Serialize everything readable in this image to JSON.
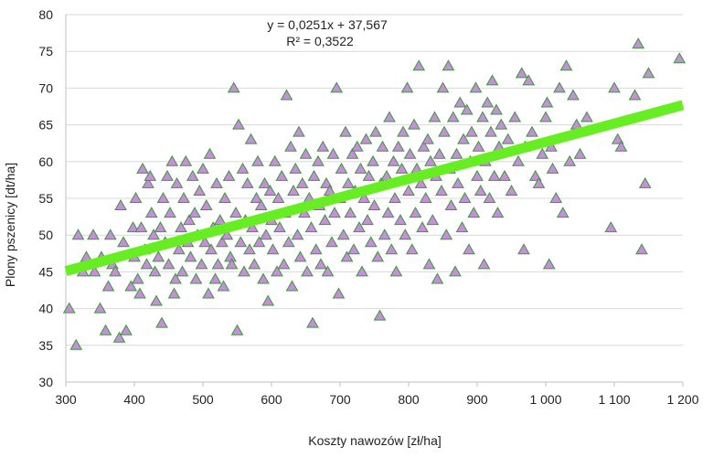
{
  "chart_data": {
    "type": "scatter",
    "xlabel": "Koszty nawozów  [zł/ha]",
    "ylabel": "Plony pszenicy [dt/ha]",
    "xlim": [
      300,
      1200
    ],
    "ylim": [
      30,
      80
    ],
    "x_ticks": [
      300,
      400,
      500,
      600,
      700,
      800,
      900,
      1000,
      1100,
      1200
    ],
    "x_tick_labels": [
      "300",
      "400",
      "500",
      "600",
      "700",
      "800",
      "900",
      "1 000",
      "1 100",
      "1 200"
    ],
    "y_ticks": [
      30,
      35,
      40,
      45,
      50,
      55,
      60,
      65,
      70,
      75,
      80
    ],
    "y_tick_labels": [
      "30",
      "35",
      "40",
      "45",
      "50",
      "55",
      "60",
      "65",
      "70",
      "75",
      "80"
    ],
    "grid": "horizontal",
    "marker": {
      "shape": "triangle",
      "fill": "#c88ddb",
      "stroke": "#3a9a3a"
    },
    "trendline": {
      "slope": 0.0251,
      "intercept": 37.567,
      "color": "#66ee22",
      "equation": "y = 0,0251x + 37,567",
      "r2": "R² = 0,3522"
    },
    "points": [
      [
        305,
        40
      ],
      [
        315,
        35
      ],
      [
        318,
        50
      ],
      [
        325,
        45
      ],
      [
        330,
        47
      ],
      [
        340,
        50
      ],
      [
        342,
        45
      ],
      [
        350,
        40
      ],
      [
        352,
        47
      ],
      [
        358,
        37
      ],
      [
        362,
        43
      ],
      [
        365,
        50
      ],
      [
        368,
        46
      ],
      [
        372,
        45
      ],
      [
        378,
        36
      ],
      [
        380,
        54
      ],
      [
        384,
        49
      ],
      [
        388,
        37
      ],
      [
        395,
        43
      ],
      [
        398,
        51
      ],
      [
        400,
        47
      ],
      [
        402,
        55
      ],
      [
        405,
        44
      ],
      [
        408,
        42
      ],
      [
        410,
        51
      ],
      [
        412,
        59
      ],
      [
        415,
        48
      ],
      [
        418,
        46
      ],
      [
        420,
        57
      ],
      [
        423,
        58
      ],
      [
        425,
        53
      ],
      [
        428,
        50
      ],
      [
        430,
        45
      ],
      [
        432,
        41
      ],
      [
        435,
        47
      ],
      [
        438,
        51
      ],
      [
        440,
        38
      ],
      [
        442,
        55
      ],
      [
        445,
        49
      ],
      [
        448,
        58
      ],
      [
        450,
        46
      ],
      [
        452,
        53
      ],
      [
        455,
        60
      ],
      [
        458,
        42
      ],
      [
        460,
        44
      ],
      [
        462,
        57
      ],
      [
        465,
        48
      ],
      [
        468,
        51
      ],
      [
        470,
        45
      ],
      [
        472,
        55
      ],
      [
        475,
        60
      ],
      [
        478,
        49
      ],
      [
        480,
        52
      ],
      [
        482,
        47
      ],
      [
        485,
        58
      ],
      [
        488,
        53
      ],
      [
        490,
        44
      ],
      [
        492,
        50
      ],
      [
        495,
        56
      ],
      [
        498,
        46
      ],
      [
        500,
        59
      ],
      [
        503,
        49
      ],
      [
        505,
        54
      ],
      [
        508,
        42
      ],
      [
        510,
        61
      ],
      [
        512,
        48
      ],
      [
        515,
        51
      ],
      [
        518,
        44
      ],
      [
        520,
        57
      ],
      [
        522,
        46
      ],
      [
        525,
        52
      ],
      [
        528,
        49
      ],
      [
        530,
        43
      ],
      [
        532,
        55
      ],
      [
        535,
        50
      ],
      [
        538,
        58
      ],
      [
        540,
        47
      ],
      [
        542,
        46
      ],
      [
        545,
        70
      ],
      [
        548,
        53
      ],
      [
        550,
        37
      ],
      [
        552,
        65
      ],
      [
        555,
        49
      ],
      [
        558,
        59
      ],
      [
        560,
        45
      ],
      [
        562,
        52
      ],
      [
        565,
        57
      ],
      [
        568,
        48
      ],
      [
        570,
        63
      ],
      [
        572,
        51
      ],
      [
        575,
        46
      ],
      [
        578,
        55
      ],
      [
        580,
        60
      ],
      [
        582,
        49
      ],
      [
        585,
        54
      ],
      [
        588,
        44
      ],
      [
        590,
        57
      ],
      [
        592,
        50
      ],
      [
        595,
        41
      ],
      [
        598,
        56
      ],
      [
        600,
        52
      ],
      [
        602,
        48
      ],
      [
        605,
        60
      ],
      [
        608,
        45
      ],
      [
        610,
        55
      ],
      [
        612,
        51
      ],
      [
        615,
        58
      ],
      [
        618,
        46
      ],
      [
        620,
        53
      ],
      [
        622,
        69
      ],
      [
        625,
        49
      ],
      [
        628,
        62
      ],
      [
        630,
        43
      ],
      [
        632,
        56
      ],
      [
        635,
        59
      ],
      [
        638,
        50
      ],
      [
        640,
        64
      ],
      [
        642,
        47
      ],
      [
        645,
        57
      ],
      [
        648,
        53
      ],
      [
        650,
        61
      ],
      [
        652,
        45
      ],
      [
        655,
        55
      ],
      [
        658,
        51
      ],
      [
        660,
        38
      ],
      [
        662,
        58
      ],
      [
        665,
        48
      ],
      [
        668,
        60
      ],
      [
        670,
        54
      ],
      [
        672,
        46
      ],
      [
        675,
        62
      ],
      [
        678,
        52
      ],
      [
        680,
        57
      ],
      [
        682,
        45
      ],
      [
        685,
        56
      ],
      [
        688,
        49
      ],
      [
        690,
        61
      ],
      [
        692,
        53
      ],
      [
        695,
        70
      ],
      [
        698,
        42
      ],
      [
        700,
        55
      ],
      [
        702,
        59
      ],
      [
        705,
        50
      ],
      [
        708,
        64
      ],
      [
        710,
        47
      ],
      [
        712,
        57
      ],
      [
        715,
        53
      ],
      [
        718,
        61
      ],
      [
        720,
        48
      ],
      [
        722,
        56
      ],
      [
        725,
        62
      ],
      [
        728,
        51
      ],
      [
        730,
        59
      ],
      [
        732,
        45
      ],
      [
        735,
        55
      ],
      [
        738,
        63
      ],
      [
        740,
        52
      ],
      [
        742,
        58
      ],
      [
        745,
        49
      ],
      [
        748,
        60
      ],
      [
        750,
        54
      ],
      [
        752,
        64
      ],
      [
        755,
        47
      ],
      [
        758,
        39
      ],
      [
        760,
        57
      ],
      [
        762,
        62
      ],
      [
        765,
        50
      ],
      [
        768,
        58
      ],
      [
        770,
        53
      ],
      [
        772,
        66
      ],
      [
        775,
        48
      ],
      [
        778,
        60
      ],
      [
        780,
        55
      ],
      [
        782,
        45
      ],
      [
        785,
        62
      ],
      [
        788,
        52
      ],
      [
        790,
        59
      ],
      [
        792,
        64
      ],
      [
        795,
        50
      ],
      [
        798,
        70
      ],
      [
        800,
        56
      ],
      [
        802,
        61
      ],
      [
        805,
        48
      ],
      [
        808,
        65
      ],
      [
        810,
        53
      ],
      [
        812,
        59
      ],
      [
        815,
        73
      ],
      [
        818,
        57
      ],
      [
        820,
        51
      ],
      [
        822,
        62
      ],
      [
        825,
        55
      ],
      [
        828,
        63
      ],
      [
        830,
        46
      ],
      [
        832,
        60
      ],
      [
        835,
        52
      ],
      [
        838,
        66
      ],
      [
        840,
        58
      ],
      [
        842,
        44
      ],
      [
        845,
        61
      ],
      [
        848,
        56
      ],
      [
        850,
        70
      ],
      [
        852,
        64
      ],
      [
        855,
        50
      ],
      [
        858,
        73
      ],
      [
        860,
        59
      ],
      [
        862,
        54
      ],
      [
        865,
        66
      ],
      [
        868,
        45
      ],
      [
        870,
        61
      ],
      [
        872,
        57
      ],
      [
        875,
        68
      ],
      [
        878,
        51
      ],
      [
        880,
        63
      ],
      [
        882,
        55
      ],
      [
        885,
        67
      ],
      [
        888,
        48
      ],
      [
        890,
        60
      ],
      [
        892,
        64
      ],
      [
        895,
        53
      ],
      [
        898,
        70
      ],
      [
        900,
        58
      ],
      [
        902,
        62
      ],
      [
        905,
        56
      ],
      [
        908,
        66
      ],
      [
        910,
        46
      ],
      [
        912,
        60
      ],
      [
        915,
        68
      ],
      [
        918,
        55
      ],
      [
        920,
        64
      ],
      [
        922,
        71
      ],
      [
        925,
        58
      ],
      [
        928,
        67
      ],
      [
        930,
        53
      ],
      [
        932,
        62
      ],
      [
        935,
        65
      ],
      [
        940,
        58
      ],
      [
        945,
        63
      ],
      [
        950,
        56
      ],
      [
        955,
        66
      ],
      [
        960,
        60
      ],
      [
        965,
        72
      ],
      [
        968,
        48
      ],
      [
        970,
        62
      ],
      [
        975,
        71
      ],
      [
        980,
        64
      ],
      [
        985,
        58
      ],
      [
        990,
        57
      ],
      [
        995,
        61
      ],
      [
        1000,
        66
      ],
      [
        1002,
        68
      ],
      [
        1005,
        46
      ],
      [
        1008,
        62
      ],
      [
        1010,
        59
      ],
      [
        1015,
        55
      ],
      [
        1020,
        70
      ],
      [
        1025,
        53
      ],
      [
        1030,
        73
      ],
      [
        1035,
        60
      ],
      [
        1040,
        69
      ],
      [
        1045,
        65
      ],
      [
        1050,
        61
      ],
      [
        1060,
        66
      ],
      [
        1095,
        51
      ],
      [
        1100,
        70
      ],
      [
        1105,
        63
      ],
      [
        1110,
        62
      ],
      [
        1130,
        69
      ],
      [
        1135,
        76
      ],
      [
        1140,
        48
      ],
      [
        1145,
        57
      ],
      [
        1150,
        72
      ],
      [
        1195,
        74
      ]
    ]
  }
}
